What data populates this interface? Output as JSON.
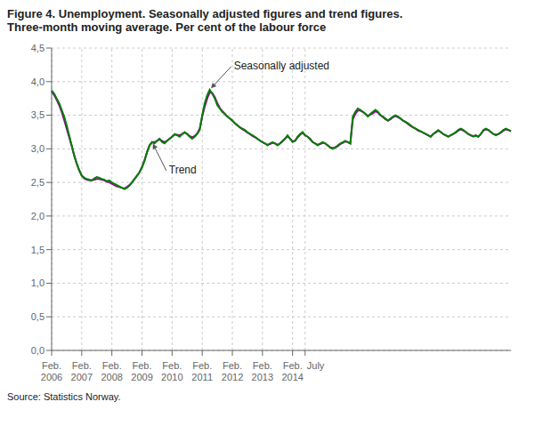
{
  "chart_data": {
    "type": "line",
    "title": "Figure 4. Unemployment. Seasonally adjusted figures and trend figures.\nThree-month moving average. Per cent of the labour force",
    "source": "Source: Statistics Norway.",
    "categories": [
      "Feb.\n2006",
      null,
      null,
      null,
      null,
      null,
      null,
      null,
      null,
      null,
      null,
      null,
      "Feb.\n2007",
      null,
      null,
      null,
      null,
      null,
      null,
      null,
      null,
      null,
      null,
      null,
      "Feb.\n2008",
      null,
      null,
      null,
      null,
      null,
      null,
      null,
      null,
      null,
      null,
      null,
      "Feb.\n2009",
      null,
      null,
      null,
      null,
      null,
      null,
      null,
      null,
      null,
      null,
      null,
      "Feb.\n2010",
      null,
      null,
      null,
      null,
      null,
      null,
      null,
      null,
      null,
      null,
      null,
      "Feb.\n2011",
      null,
      null,
      null,
      null,
      null,
      null,
      null,
      null,
      null,
      null,
      null,
      "Feb.\n2012",
      null,
      null,
      null,
      null,
      null,
      null,
      null,
      null,
      null,
      null,
      null,
      "Feb.\n2013",
      null,
      null,
      null,
      null,
      null,
      null,
      null,
      null,
      null,
      null,
      null,
      "Feb.\n2014",
      null,
      null,
      null,
      null,
      "July",
      null,
      null,
      null,
      null,
      null,
      null,
      null,
      null,
      null,
      null,
      null,
      null,
      null,
      null,
      null,
      null,
      null,
      null,
      null,
      null,
      null,
      null,
      null,
      null,
      null,
      null,
      null,
      null,
      null,
      null,
      null,
      null,
      null,
      null,
      null,
      null,
      null,
      null,
      null,
      null,
      null,
      null,
      null,
      null,
      null,
      null,
      null,
      null,
      null,
      null,
      null,
      null,
      null,
      null,
      null,
      null,
      null,
      null,
      null,
      null,
      null,
      null,
      null,
      null,
      null,
      null,
      null,
      null,
      null,
      null,
      null,
      null,
      null,
      null,
      null,
      null,
      null,
      null,
      null,
      null,
      null,
      null
    ],
    "series": [
      {
        "name": "Trend",
        "color": "#9b009b",
        "values": [
          3.85,
          3.8,
          3.73,
          3.65,
          3.55,
          3.43,
          3.3,
          3.17,
          3.04,
          2.9,
          2.78,
          2.68,
          2.6,
          2.56,
          2.54,
          2.53,
          2.53,
          2.54,
          2.55,
          2.55,
          2.54,
          2.53,
          2.51,
          2.5,
          2.48,
          2.46,
          2.44,
          2.43,
          2.42,
          2.41,
          2.43,
          2.46,
          2.5,
          2.55,
          2.6,
          2.65,
          2.73,
          2.83,
          2.95,
          3.05,
          3.1,
          3.1,
          3.12,
          3.14,
          3.12,
          3.1,
          3.12,
          3.15,
          3.18,
          3.21,
          3.21,
          3.2,
          3.22,
          3.24,
          3.22,
          3.19,
          3.17,
          3.19,
          3.23,
          3.3,
          3.48,
          3.63,
          3.75,
          3.84,
          3.83,
          3.77,
          3.68,
          3.61,
          3.56,
          3.52,
          3.48,
          3.45,
          3.42,
          3.38,
          3.35,
          3.32,
          3.29,
          3.27,
          3.24,
          3.22,
          3.19,
          3.17,
          3.15,
          3.12,
          3.1,
          3.08,
          3.06,
          3.07,
          3.09,
          3.08,
          3.06,
          3.08,
          3.11,
          3.15,
          3.19,
          3.15,
          3.11,
          3.12,
          3.17,
          3.21,
          3.24,
          3.2,
          3.18,
          3.14,
          3.1,
          3.08,
          3.06,
          3.07,
          3.09,
          3.08,
          3.05,
          3.02,
          3.01,
          3.02,
          3.04,
          3.07,
          3.09,
          3.11,
          3.1,
          3.08,
          3.44,
          3.52,
          3.57,
          3.57,
          3.55,
          3.52,
          3.49,
          3.51,
          3.53,
          3.56,
          3.54,
          3.5,
          3.47,
          3.44,
          3.42,
          3.44,
          3.47,
          3.49,
          3.47,
          3.45,
          3.42,
          3.4,
          3.37,
          3.34,
          3.32,
          3.3,
          3.27,
          3.26,
          3.24,
          3.22,
          3.2,
          3.18,
          3.22,
          3.24,
          3.27,
          3.25,
          3.22,
          3.2,
          3.18,
          3.2,
          3.22,
          3.24,
          3.27,
          3.29,
          3.27,
          3.25,
          3.22,
          3.2,
          3.19,
          3.2,
          3.18,
          3.22,
          3.27,
          3.29,
          3.28,
          3.25,
          3.22,
          3.21,
          3.22,
          3.24,
          3.27,
          3.29,
          3.28,
          3.26
        ]
      },
      {
        "name": "Seasonally adjusted",
        "color": "#008000",
        "values": [
          3.87,
          3.82,
          3.75,
          3.68,
          3.58,
          3.48,
          3.35,
          3.2,
          3.05,
          2.9,
          2.78,
          2.68,
          2.6,
          2.57,
          2.55,
          2.54,
          2.53,
          2.56,
          2.58,
          2.57,
          2.55,
          2.54,
          2.52,
          2.53,
          2.5,
          2.48,
          2.46,
          2.44,
          2.42,
          2.4,
          2.42,
          2.45,
          2.5,
          2.55,
          2.6,
          2.65,
          2.72,
          2.82,
          2.95,
          3.05,
          3.1,
          3.08,
          3.12,
          3.15,
          3.1,
          3.08,
          3.12,
          3.15,
          3.18,
          3.22,
          3.2,
          3.18,
          3.22,
          3.25,
          3.22,
          3.18,
          3.15,
          3.18,
          3.22,
          3.28,
          3.5,
          3.68,
          3.8,
          3.88,
          3.82,
          3.75,
          3.65,
          3.6,
          3.55,
          3.52,
          3.48,
          3.45,
          3.42,
          3.38,
          3.35,
          3.32,
          3.3,
          3.28,
          3.25,
          3.22,
          3.2,
          3.18,
          3.15,
          3.12,
          3.1,
          3.08,
          3.05,
          3.08,
          3.1,
          3.08,
          3.05,
          3.08,
          3.12,
          3.15,
          3.2,
          3.15,
          3.1,
          3.12,
          3.18,
          3.22,
          3.25,
          3.2,
          3.18,
          3.15,
          3.1,
          3.08,
          3.05,
          3.08,
          3.1,
          3.08,
          3.05,
          3.02,
          3.0,
          3.02,
          3.05,
          3.08,
          3.1,
          3.12,
          3.1,
          3.08,
          3.48,
          3.55,
          3.6,
          3.58,
          3.55,
          3.52,
          3.48,
          3.52,
          3.55,
          3.58,
          3.55,
          3.5,
          3.48,
          3.45,
          3.42,
          3.45,
          3.48,
          3.5,
          3.48,
          3.45,
          3.42,
          3.4,
          3.38,
          3.35,
          3.32,
          3.3,
          3.28,
          3.26,
          3.24,
          3.22,
          3.2,
          3.18,
          3.22,
          3.25,
          3.28,
          3.25,
          3.22,
          3.2,
          3.18,
          3.2,
          3.22,
          3.25,
          3.28,
          3.3,
          3.28,
          3.25,
          3.22,
          3.2,
          3.18,
          3.2,
          3.18,
          3.22,
          3.28,
          3.3,
          3.28,
          3.25,
          3.22,
          3.2,
          3.22,
          3.25,
          3.28,
          3.3,
          3.28,
          3.26
        ]
      }
    ],
    "ylim": [
      0.0,
      4.5
    ],
    "yticks": [
      {
        "value": 0.0,
        "label": "0,0"
      },
      {
        "value": 0.5,
        "label": "0,5"
      },
      {
        "value": 1.0,
        "label": "1,0"
      },
      {
        "value": 1.5,
        "label": "1,5"
      },
      {
        "value": 2.0,
        "label": "2,0"
      },
      {
        "value": 2.5,
        "label": "2,5"
      },
      {
        "value": 3.0,
        "label": "3,0"
      },
      {
        "value": 3.5,
        "label": "3,5"
      },
      {
        "value": 4.0,
        "label": "4,0"
      },
      {
        "value": 4.5,
        "label": "4,5"
      }
    ],
    "grid": true
  }
}
